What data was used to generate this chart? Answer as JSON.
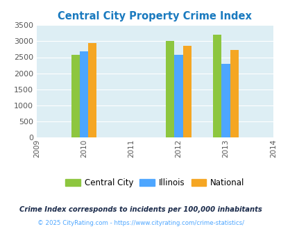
{
  "title": "Central City Property Crime Index",
  "title_color": "#1a7abf",
  "years": [
    2009,
    2010,
    2011,
    2012,
    2013,
    2014
  ],
  "data_years": [
    2010,
    2012,
    2013
  ],
  "central_city": [
    2580,
    3000,
    3200
  ],
  "illinois": [
    2680,
    2580,
    2290
  ],
  "national": [
    2950,
    2850,
    2720
  ],
  "colors": {
    "central_city": "#8dc63f",
    "illinois": "#4da6ff",
    "national": "#f5a623"
  },
  "ylim": [
    0,
    3500
  ],
  "yticks": [
    0,
    500,
    1000,
    1500,
    2000,
    2500,
    3000,
    3500
  ],
  "background_color": "#ddeef4",
  "legend_labels": [
    "Central City",
    "Illinois",
    "National"
  ],
  "footnote1": "Crime Index corresponds to incidents per 100,000 inhabitants",
  "footnote2": "© 2025 CityRating.com - https://www.cityrating.com/crime-statistics/",
  "bar_width": 0.18,
  "footnote1_color": "#1a2a4a",
  "footnote2_color": "#4da6ff"
}
